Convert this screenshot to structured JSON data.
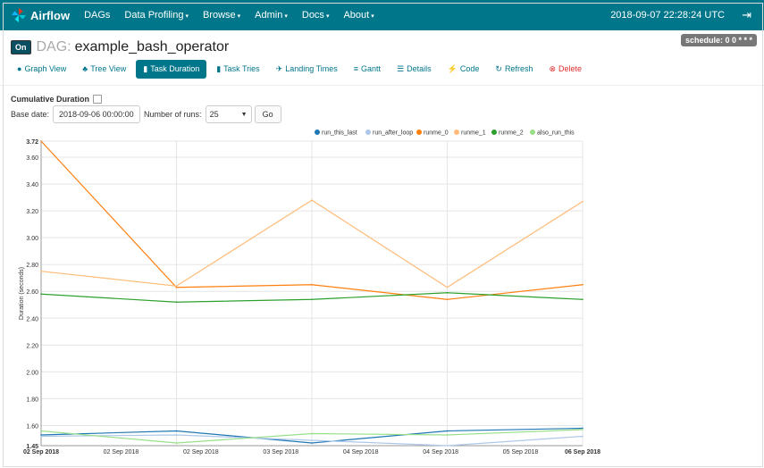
{
  "nav": {
    "brand": "Airflow",
    "items": [
      {
        "label": "DAGs",
        "caret": false
      },
      {
        "label": "Data Profiling",
        "caret": true
      },
      {
        "label": "Browse",
        "caret": true
      },
      {
        "label": "Admin",
        "caret": true
      },
      {
        "label": "Docs",
        "caret": true
      },
      {
        "label": "About",
        "caret": true
      }
    ],
    "datetime": "2018-09-07 22:28:24 UTC"
  },
  "dag": {
    "toggle": "On",
    "prefix": "DAG:",
    "name": "example_bash_operator",
    "schedule": "schedule: 0 0 * * *"
  },
  "tabs": [
    {
      "label": "Graph View",
      "icon": "●"
    },
    {
      "label": "Tree View",
      "icon": "♣"
    },
    {
      "label": "Task Duration",
      "icon": "▮"
    },
    {
      "label": "Task Tries",
      "icon": "▮"
    },
    {
      "label": "Landing Times",
      "icon": "✈"
    },
    {
      "label": "Gantt",
      "icon": "≡"
    },
    {
      "label": "Details",
      "icon": "☰"
    },
    {
      "label": "Code",
      "icon": "⚡"
    },
    {
      "label": "Refresh",
      "icon": "↻"
    },
    {
      "label": "Delete",
      "icon": "⊗"
    }
  ],
  "active_tab": 2,
  "form": {
    "cumulative_label": "Cumulative Duration",
    "base_date_label": "Base date:",
    "base_date_value": "2018-09-06 00:00:00",
    "num_runs_label": "Number of runs:",
    "num_runs_value": "25",
    "go_label": "Go"
  },
  "colors": {
    "navbar": "#00768a",
    "accent": "#00768a",
    "delete": "#e02d2d"
  },
  "chart_data": {
    "type": "line",
    "ylabel": "Duration (seconds)",
    "ylim": [
      1.45,
      3.72
    ],
    "yticks": [
      "3.72",
      "3.60",
      "3.40",
      "3.20",
      "3.00",
      "2.80",
      "2.60",
      "2.40",
      "2.20",
      "2.00",
      "1.80",
      "1.60",
      "1.45"
    ],
    "xticks": [
      "02 Sep 2018",
      "02 Sep 2018",
      "02 Sep 2018",
      "03 Sep 2018",
      "04 Sep 2018",
      "04 Sep 2018",
      "05 Sep 2018",
      "06 Sep 2018"
    ],
    "x": [
      "02 Sep 2018",
      "03 Sep 2018",
      "04 Sep 2018",
      "05 Sep 2018",
      "06 Sep 2018"
    ],
    "series": [
      {
        "name": "run_this_last",
        "color": "#1f77b4",
        "values": [
          1.53,
          1.56,
          1.47,
          1.56,
          1.58
        ]
      },
      {
        "name": "run_after_loop",
        "color": "#aec7e8",
        "values": [
          1.52,
          1.53,
          1.49,
          1.45,
          1.52
        ]
      },
      {
        "name": "runme_0",
        "color": "#ff7f0e",
        "values": [
          3.72,
          2.63,
          2.65,
          2.54,
          2.65
        ]
      },
      {
        "name": "runme_1",
        "color": "#ffbb78",
        "values": [
          2.75,
          2.64,
          3.28,
          2.63,
          3.27
        ]
      },
      {
        "name": "runme_2",
        "color": "#2ca02c",
        "values": [
          2.58,
          2.52,
          2.54,
          2.59,
          2.54
        ]
      },
      {
        "name": "also_run_this",
        "color": "#98df8a",
        "values": [
          1.56,
          1.47,
          1.54,
          1.53,
          1.57
        ]
      }
    ],
    "grid": true,
    "legend": "top-right"
  }
}
